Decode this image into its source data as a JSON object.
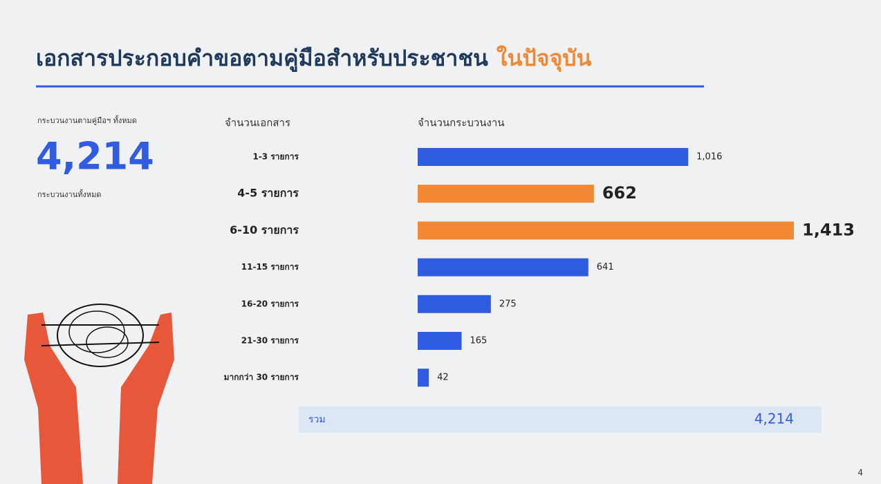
{
  "header": {
    "title": "เอกสารประกอบคำขอตามคู่มือสำหรับประชาชน",
    "title_highlight": "ในปัจจุบัน"
  },
  "summary": {
    "caption_top": "กระบวนงานตามคู่มือฯ ทั้งหมด",
    "value": "4,214",
    "caption_bottom": "กระบวนงานทั้งหมด"
  },
  "chart_data": {
    "type": "bar",
    "orientation": "horizontal",
    "category_header": "จำนวนเอกสาร",
    "value_header": "จำนวนกระบวนงาน",
    "categories": [
      "1-3 รายการ",
      "4-5 รายการ",
      "6-10 รายการ",
      "11-15 รายการ",
      "16-20 รายการ",
      "21-30 รายการ",
      "มากกว่า 30 รายการ"
    ],
    "values": [
      1016,
      662,
      1413,
      641,
      275,
      165,
      42
    ],
    "value_labels": [
      "1,016",
      "662",
      "1,413",
      "641",
      "275",
      "165",
      "42"
    ],
    "color": "#2f5ce0",
    "highlight_color": "#f28734",
    "highlighted": [
      1,
      2
    ],
    "total_label": "รวม",
    "total_value": "4,214"
  },
  "footer": {
    "page": "4"
  }
}
